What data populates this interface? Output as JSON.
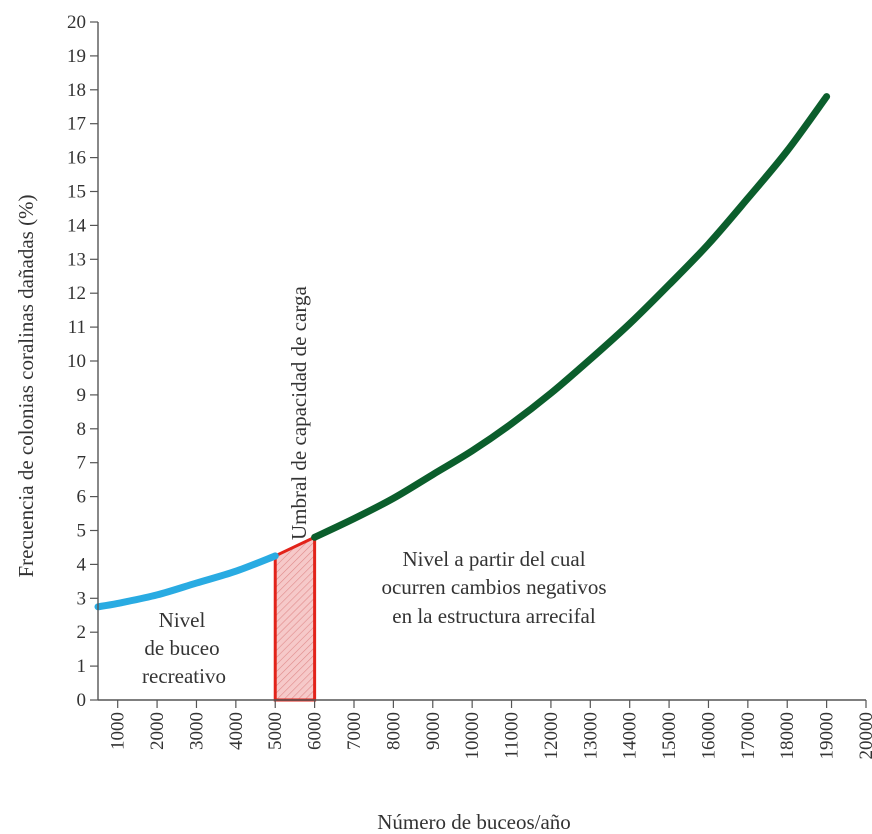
{
  "chart_data": {
    "type": "line",
    "title": "",
    "xlabel": "Número de buceos/año",
    "ylabel": "Frecuencia de colonias coralinas dañadas (%)",
    "xlim": [
      500,
      20000
    ],
    "ylim": [
      0,
      20
    ],
    "x_ticks": [
      "1000",
      "2000",
      "3000",
      "4000",
      "5000",
      "6000",
      "7000",
      "8000",
      "9000",
      "10000",
      "11000",
      "12000",
      "13000",
      "14000",
      "15000",
      "16000",
      "17000",
      "18000",
      "19000",
      "20000"
    ],
    "y_ticks": [
      "0",
      "1",
      "2",
      "3",
      "4",
      "5",
      "6",
      "7",
      "8",
      "9",
      "10",
      "11",
      "12",
      "13",
      "14",
      "15",
      "16",
      "17",
      "18",
      "19",
      "20"
    ],
    "series": [
      {
        "color": "#29abe2",
        "x": [
          500,
          1000,
          2000,
          3000,
          4000,
          5000
        ],
        "y": [
          2.75,
          2.85,
          3.1,
          3.45,
          3.8,
          4.25
        ]
      },
      {
        "color": "#0b5e2c",
        "x": [
          6000,
          7000,
          8000,
          9000,
          10000,
          11000,
          12000,
          13000,
          14000,
          15000,
          16000,
          17000,
          18000,
          19000
        ],
        "y": [
          4.8,
          5.35,
          5.95,
          6.65,
          7.35,
          8.15,
          9.05,
          10.05,
          11.1,
          12.25,
          13.45,
          14.8,
          16.2,
          17.8
        ]
      }
    ],
    "shaded_region": {
      "x_start": 5000,
      "x_end": 6000,
      "stroke": "#e2231a",
      "fill": "#f4b8b8"
    },
    "annotations": {
      "threshold": "Umbral de capacidad de carga",
      "recreational": [
        "Nivel",
        "de buceo",
        "recreativo"
      ],
      "negative": [
        "Nivel a partir del cual",
        "ocurren cambios negativos",
        "en la estructura arrecifal"
      ]
    }
  }
}
